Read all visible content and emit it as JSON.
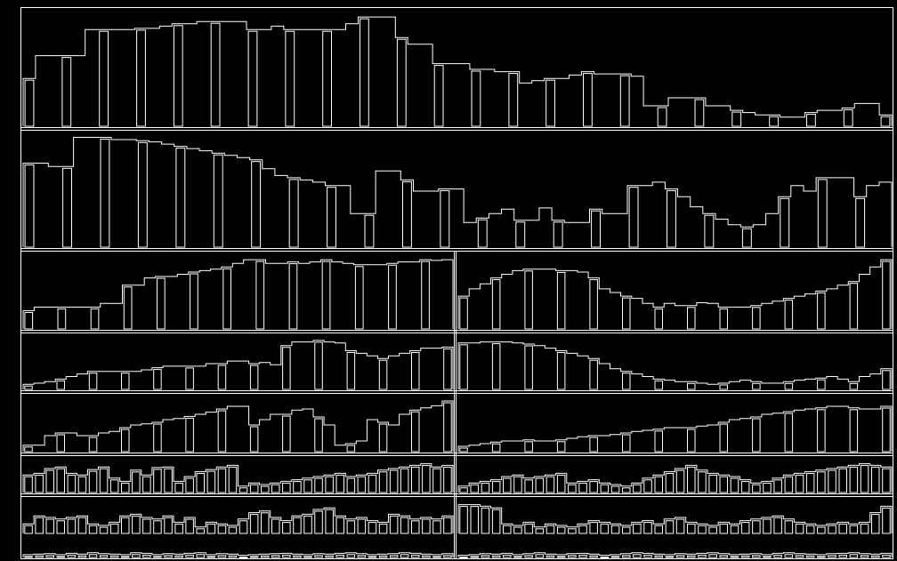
{
  "image": {
    "kind": "edge-map",
    "background": "#000000",
    "stroke": "#ffffff"
  },
  "bar_panels": [
    {
      "name": "panel-top-a",
      "series": [
        0.42,
        0.62,
        0.62,
        0.62,
        0.62,
        0.85,
        0.85,
        0.85,
        0.85,
        0.86,
        0.86,
        0.88,
        0.9,
        0.9,
        0.92,
        0.92,
        0.92,
        0.92,
        0.85,
        0.85,
        0.88,
        0.85,
        0.85,
        0.85,
        0.85,
        0.85,
        0.9,
        0.96,
        0.96,
        0.96,
        0.78,
        0.72,
        0.72,
        0.55,
        0.55,
        0.55,
        0.5,
        0.5,
        0.48,
        0.48,
        0.38,
        0.4,
        0.42,
        0.42,
        0.45,
        0.48,
        0.46,
        0.46,
        0.46,
        0.44,
        0.18,
        0.18,
        0.25,
        0.25,
        0.25,
        0.18,
        0.18,
        0.14,
        0.12,
        0.1,
        0.1,
        0.08,
        0.08,
        0.12,
        0.14,
        0.14,
        0.16,
        0.2,
        0.2,
        0.1
      ]
    },
    {
      "name": "panel-top-b",
      "series": [
        0.75,
        0.75,
        0.72,
        0.72,
        0.98,
        0.98,
        0.98,
        0.96,
        0.96,
        0.95,
        0.94,
        0.92,
        0.9,
        0.88,
        0.86,
        0.84,
        0.82,
        0.8,
        0.78,
        0.7,
        0.64,
        0.62,
        0.6,
        0.58,
        0.55,
        0.55,
        0.3,
        0.3,
        0.68,
        0.68,
        0.6,
        0.5,
        0.5,
        0.52,
        0.52,
        0.22,
        0.26,
        0.3,
        0.34,
        0.24,
        0.24,
        0.35,
        0.24,
        0.22,
        0.22,
        0.34,
        0.3,
        0.3,
        0.55,
        0.55,
        0.58,
        0.52,
        0.45,
        0.36,
        0.3,
        0.25,
        0.2,
        0.18,
        0.2,
        0.3,
        0.45,
        0.55,
        0.5,
        0.62,
        0.62,
        0.62,
        0.45,
        0.55,
        0.58
      ]
    },
    {
      "name": "panel-mid-1-left",
      "series": [
        0.25,
        0.3,
        0.3,
        0.3,
        0.3,
        0.3,
        0.3,
        0.35,
        0.35,
        0.6,
        0.6,
        0.7,
        0.72,
        0.72,
        0.75,
        0.78,
        0.8,
        0.82,
        0.85,
        0.9,
        0.95,
        0.95,
        0.9,
        0.9,
        0.92,
        0.9,
        0.92,
        0.95,
        0.92,
        0.9,
        0.88,
        0.88,
        0.88,
        0.9,
        0.92,
        0.92,
        0.95,
        0.94,
        0.95
      ]
    },
    {
      "name": "panel-mid-1-right",
      "series": [
        0.45,
        0.55,
        0.62,
        0.7,
        0.75,
        0.8,
        0.82,
        0.82,
        0.82,
        0.8,
        0.8,
        0.78,
        0.7,
        0.55,
        0.5,
        0.45,
        0.42,
        0.35,
        0.3,
        0.35,
        0.32,
        0.32,
        0.36,
        0.35,
        0.3,
        0.3,
        0.3,
        0.32,
        0.35,
        0.38,
        0.42,
        0.45,
        0.48,
        0.52,
        0.55,
        0.6,
        0.65,
        0.75,
        0.85,
        0.95
      ]
    },
    {
      "name": "panel-mid-2-left",
      "series": [
        0.1,
        0.12,
        0.15,
        0.2,
        0.25,
        0.3,
        0.35,
        0.35,
        0.35,
        0.35,
        0.35,
        0.38,
        0.42,
        0.45,
        0.45,
        0.45,
        0.45,
        0.5,
        0.5,
        0.55,
        0.55,
        0.5,
        0.52,
        0.48,
        0.85,
        0.92,
        0.92,
        0.95,
        0.92,
        0.9,
        0.75,
        0.7,
        0.65,
        0.6,
        0.65,
        0.7,
        0.75,
        0.8,
        0.8,
        0.82
      ]
    },
    {
      "name": "panel-mid-2-right",
      "series": [
        0.9,
        0.9,
        0.92,
        0.92,
        0.92,
        0.9,
        0.88,
        0.85,
        0.8,
        0.75,
        0.7,
        0.65,
        0.6,
        0.5,
        0.4,
        0.35,
        0.3,
        0.25,
        0.2,
        0.18,
        0.15,
        0.15,
        0.12,
        0.1,
        0.12,
        0.15,
        0.18,
        0.15,
        0.12,
        0.12,
        0.15,
        0.18,
        0.2,
        0.22,
        0.25,
        0.2,
        0.15,
        0.25,
        0.3,
        0.4
      ]
    },
    {
      "name": "panel-mid-3-left",
      "series": [
        0.12,
        0.12,
        0.3,
        0.35,
        0.35,
        0.3,
        0.3,
        0.35,
        0.38,
        0.45,
        0.5,
        0.52,
        0.55,
        0.6,
        0.62,
        0.66,
        0.7,
        0.74,
        0.8,
        0.85,
        0.85,
        0.5,
        0.6,
        0.7,
        0.7,
        0.78,
        0.8,
        0.65,
        0.5,
        0.12,
        0.15,
        0.2,
        0.6,
        0.55,
        0.5,
        0.7,
        0.78,
        0.82,
        0.86,
        0.95
      ]
    },
    {
      "name": "panel-mid-3-right",
      "series": [
        0.1,
        0.12,
        0.15,
        0.18,
        0.2,
        0.2,
        0.22,
        0.2,
        0.2,
        0.22,
        0.25,
        0.28,
        0.3,
        0.3,
        0.32,
        0.35,
        0.38,
        0.4,
        0.42,
        0.45,
        0.45,
        0.45,
        0.48,
        0.5,
        0.55,
        0.6,
        0.62,
        0.65,
        0.7,
        0.72,
        0.75,
        0.78,
        0.8,
        0.82,
        0.85,
        0.85,
        0.82,
        0.8,
        0.8,
        0.85
      ]
    },
    {
      "name": "panel-low-1-left",
      "series": [
        0.55,
        0.6,
        0.75,
        0.8,
        0.6,
        0.55,
        0.72,
        0.8,
        0.45,
        0.35,
        0.7,
        0.55,
        0.78,
        0.8,
        0.35,
        0.5,
        0.65,
        0.72,
        0.8,
        0.85,
        0.2,
        0.3,
        0.25,
        0.3,
        0.35,
        0.4,
        0.45,
        0.5,
        0.55,
        0.6,
        0.5,
        0.55,
        0.6,
        0.7,
        0.75,
        0.8,
        0.85,
        0.9,
        0.8,
        0.85
      ]
    },
    {
      "name": "panel-low-1-right",
      "series": [
        0.2,
        0.3,
        0.35,
        0.4,
        0.5,
        0.55,
        0.45,
        0.5,
        0.55,
        0.6,
        0.3,
        0.35,
        0.4,
        0.3,
        0.25,
        0.2,
        0.3,
        0.45,
        0.55,
        0.65,
        0.75,
        0.85,
        0.7,
        0.6,
        0.55,
        0.5,
        0.4,
        0.3,
        0.35,
        0.45,
        0.55,
        0.6,
        0.65,
        0.7,
        0.75,
        0.8,
        0.85,
        0.9,
        0.85,
        0.8
      ]
    },
    {
      "name": "panel-low-2-left",
      "series": [
        0.3,
        0.55,
        0.5,
        0.45,
        0.5,
        0.55,
        0.3,
        0.25,
        0.35,
        0.55,
        0.6,
        0.5,
        0.45,
        0.55,
        0.35,
        0.5,
        0.2,
        0.35,
        0.3,
        0.25,
        0.45,
        0.65,
        0.7,
        0.5,
        0.4,
        0.55,
        0.6,
        0.75,
        0.8,
        0.55,
        0.45,
        0.5,
        0.4,
        0.35,
        0.6,
        0.55,
        0.45,
        0.5,
        0.45,
        0.55
      ]
    },
    {
      "name": "panel-low-2-right",
      "series": [
        0.9,
        0.9,
        0.85,
        0.8,
        0.3,
        0.25,
        0.35,
        0.2,
        0.3,
        0.25,
        0.2,
        0.3,
        0.4,
        0.35,
        0.3,
        0.25,
        0.35,
        0.4,
        0.3,
        0.45,
        0.5,
        0.35,
        0.3,
        0.25,
        0.35,
        0.3,
        0.4,
        0.45,
        0.5,
        0.55,
        0.45,
        0.35,
        0.3,
        0.25,
        0.3,
        0.35,
        0.3,
        0.35,
        0.65,
        0.85
      ]
    },
    {
      "name": "panel-low-3-left",
      "series": [
        0.15,
        0.18,
        0.2,
        0.15,
        0.22,
        0.18,
        0.25,
        0.2,
        0.18,
        0.15,
        0.25,
        0.22,
        0.15,
        0.2,
        0.18,
        0.22,
        0.25,
        0.15,
        0.2,
        0.18,
        0.12,
        0.15,
        0.18,
        0.2,
        0.22,
        0.18,
        0.15,
        0.2,
        0.18,
        0.22,
        0.25,
        0.2,
        0.15,
        0.18,
        0.2,
        0.25,
        0.22,
        0.18,
        0.15,
        0.2
      ]
    },
    {
      "name": "panel-low-3-right",
      "series": [
        0.12,
        0.15,
        0.2,
        0.18,
        0.22,
        0.15,
        0.2,
        0.25,
        0.18,
        0.15,
        0.2,
        0.22,
        0.18,
        0.12,
        0.15,
        0.2,
        0.25,
        0.22,
        0.18,
        0.15,
        0.2,
        0.18,
        0.22,
        0.25,
        0.2,
        0.15,
        0.18,
        0.2,
        0.15,
        0.22,
        0.25,
        0.2,
        0.18,
        0.15,
        0.2,
        0.22,
        0.25,
        0.2,
        0.18,
        0.22
      ]
    }
  ]
}
